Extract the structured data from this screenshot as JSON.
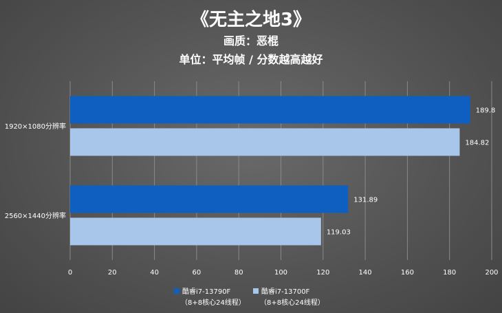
{
  "chart_data": {
    "type": "bar",
    "orientation": "horizontal",
    "title": "《无主之地3》",
    "subtitle_lines": [
      "画质：恶棍",
      "单位：平均帧 / 分数越高越好"
    ],
    "categories": [
      "1920×1080分辨率",
      "2560×1440分辨率"
    ],
    "series": [
      {
        "name": "酷睿i7-13790F",
        "name_sub": "（8+8核心24线程）",
        "color": "#0e5fbf",
        "values": [
          189.8,
          131.89
        ],
        "labels": [
          "189.8",
          "131.89"
        ]
      },
      {
        "name": "酷睿i7-13700F",
        "name_sub": "（8+8核心24线程）",
        "color": "#a7c6ea",
        "values": [
          184.82,
          119.03
        ],
        "labels": [
          "184.82",
          "119.03"
        ]
      }
    ],
    "xlim": [
      0,
      200
    ],
    "x_ticks": [
      0,
      20,
      40,
      60,
      80,
      100,
      120,
      140,
      160,
      180,
      200
    ],
    "x_tick_labels": [
      "0",
      "20",
      "40",
      "60",
      "80",
      "100",
      "120",
      "140",
      "160",
      "180",
      "200"
    ],
    "grid": "vertical",
    "legend_position": "bottom"
  }
}
